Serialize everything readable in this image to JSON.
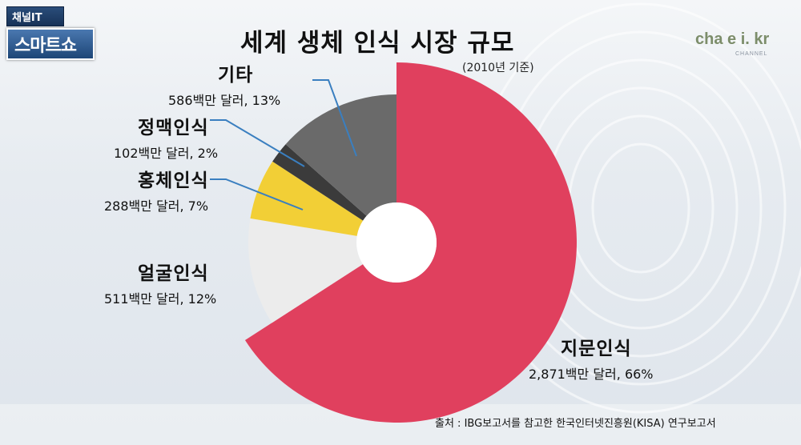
{
  "badge": {
    "top": "채널IT",
    "main": "스마트쇼"
  },
  "logo": {
    "text": "cha  e i.  kr",
    "sub": "CHANNEL"
  },
  "chart_data": {
    "type": "pie",
    "title": "세계 생체 인식 시장 규모",
    "subtitle": "(2010년 기준)",
    "slices": [
      {
        "name": "지문인식",
        "label": "2,871백만 달러, 66%",
        "value": 2871,
        "percent": 66,
        "color": "#e0405e"
      },
      {
        "name": "얼굴인식",
        "label": "511백만 달러, 12%",
        "value": 511,
        "percent": 12,
        "color": "#ececec"
      },
      {
        "name": "홍체인식",
        "label": "288백만 달러, 7%",
        "value": 288,
        "percent": 7,
        "color": "#f2cf36"
      },
      {
        "name": "정맥인식",
        "label": "102백만 달러, 2%",
        "value": 102,
        "percent": 2,
        "color": "#3b3b3b"
      },
      {
        "name": "기타",
        "label": "586백만 달러, 13%",
        "value": 586,
        "percent": 13,
        "color": "#6a6a6a"
      }
    ],
    "legend": "callouts"
  },
  "source": "출처 : IBG보고서를 참고한 한국인터넷진흥원(KISA) 연구보고서"
}
